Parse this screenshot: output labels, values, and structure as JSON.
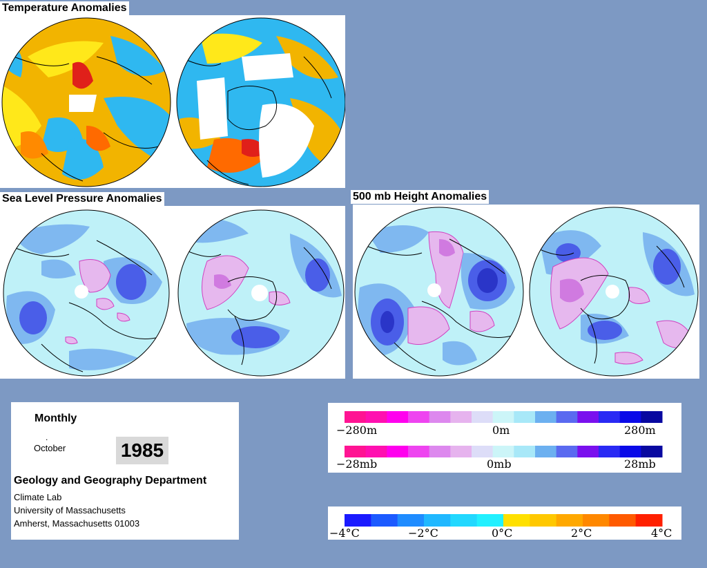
{
  "titles": {
    "temperature": "Temperature Anomalies",
    "slp": "Sea Level Pressure Anomalies",
    "height": "500 mb Height Anomalies"
  },
  "info": {
    "period": "Monthly",
    "month": "October",
    "year": "1985",
    "department": "Geology and Geography Department",
    "lab": "Climate Lab",
    "university": "University of Massachusetts",
    "address": "Amherst, Massachusetts 01003"
  },
  "legends": {
    "height": {
      "labels": [
        "−280m",
        "0m",
        "280m"
      ],
      "colors": [
        "#ff1493",
        "#ff10b0",
        "#ff00ee",
        "#ee44f0",
        "#dd88ee",
        "#e6b3ee",
        "#ddddf8",
        "#ccf5f8",
        "#a8e8f8",
        "#6cb0f0",
        "#5a6af0",
        "#7a10ee",
        "#2a2af4",
        "#0a0ae8",
        "#0808a0"
      ]
    },
    "slp": {
      "labels": [
        "−28mb",
        "0mb",
        "28mb"
      ]
    },
    "temp": {
      "labels": [
        "−4°C",
        "−2°C",
        "0°C",
        "2°C",
        "4°C"
      ],
      "colors": [
        "#1a1aff",
        "#1c5aff",
        "#1f8cff",
        "#20b8ff",
        "#22d8ff",
        "#22f0ff",
        "#ffe000",
        "#ffc800",
        "#ffa800",
        "#ff8800",
        "#ff5a00",
        "#ff2000"
      ]
    }
  },
  "palette": {
    "temp_warm": "#f2b400",
    "temp_hot": "#ff6a00",
    "temp_red": "#e0201a",
    "temp_cool": "#2fb8f0",
    "temp_mild": "#ffe81a",
    "pressure_base": "#bff1f8",
    "pressure_low": "#7fb8f0",
    "pressure_deep": "#4a5ee8",
    "pressure_high": "#e6b8ee",
    "pressure_peak": "#d07ae0"
  }
}
